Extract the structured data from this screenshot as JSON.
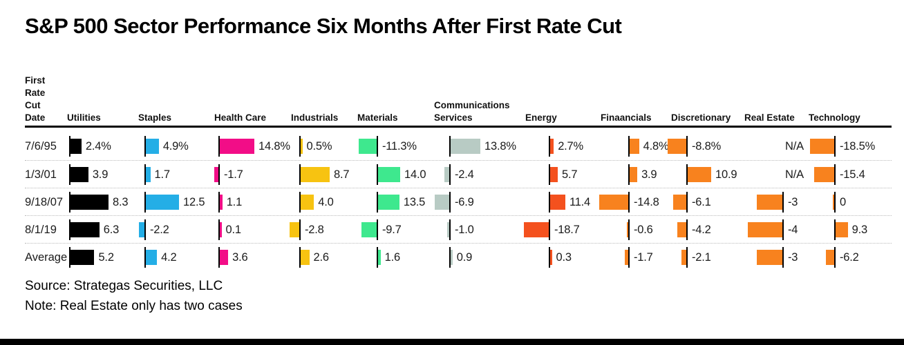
{
  "title": "S&P 500 Sector Performance Six Months After First Rate Cut",
  "source": "Source: Strategas Securities, LLC",
  "note": "Note: Real Estate only has two cases",
  "chart_data": {
    "type": "bar",
    "orientation": "horizontal",
    "row_header_lines": [
      "First",
      "Rate",
      "Cut",
      "Date"
    ],
    "row_header": "First Rate Cut Date",
    "columns": [
      {
        "label": "Utilities",
        "color": "#000000"
      },
      {
        "label": "Staples",
        "color": "#24AEE6"
      },
      {
        "label": "Health Care",
        "color": "#F20D87"
      },
      {
        "label": "Industrials",
        "color": "#F7C311"
      },
      {
        "label": "Materials",
        "color": "#3EE88E"
      },
      {
        "label": "Communications Services",
        "color": "#B8CBC4"
      },
      {
        "label": "Energy",
        "color": "#F4511E"
      },
      {
        "label": "Finaancials",
        "color": "#F8821E"
      },
      {
        "label": "Discretionary",
        "color": "#F8821E"
      },
      {
        "label": "Real Estate",
        "color": "#F8821E"
      },
      {
        "label": "Technology",
        "color": "#F8821E"
      }
    ],
    "rows": [
      {
        "label": "7/6/95",
        "values": [
          "2.4%",
          "4.9%",
          "14.8%",
          "0.5%",
          "-11.3%",
          "13.8%",
          "2.7%",
          "4.8%",
          "-8.8%",
          "N/A",
          "-18.5%"
        ]
      },
      {
        "label": "1/3/01",
        "values": [
          "3.9",
          "1.7",
          "-1.7",
          "8.7",
          "14.0",
          "-2.4",
          "5.7",
          "3.9",
          "10.9",
          "N/A",
          "-15.4"
        ]
      },
      {
        "label": "9/18/07",
        "values": [
          "8.3",
          "12.5",
          "1.1",
          "4.0",
          "13.5",
          "-6.9",
          "11.4",
          "-14.8",
          "-6.1",
          "-3",
          "0"
        ]
      },
      {
        "label": "8/1/19",
        "values": [
          "6.3",
          "-2.2",
          "0.1",
          "-2.8",
          "-9.7",
          "-1.0",
          "-18.7",
          "-0.6",
          "-4.2",
          "-4",
          "9.3"
        ]
      },
      {
        "label": "Average",
        "values": [
          "5.2",
          "4.2",
          "3.6",
          "2.6",
          "1.6",
          "0.9",
          "0.3",
          "-1.7",
          "-2.1",
          "-3",
          "-6.2"
        ]
      }
    ]
  }
}
